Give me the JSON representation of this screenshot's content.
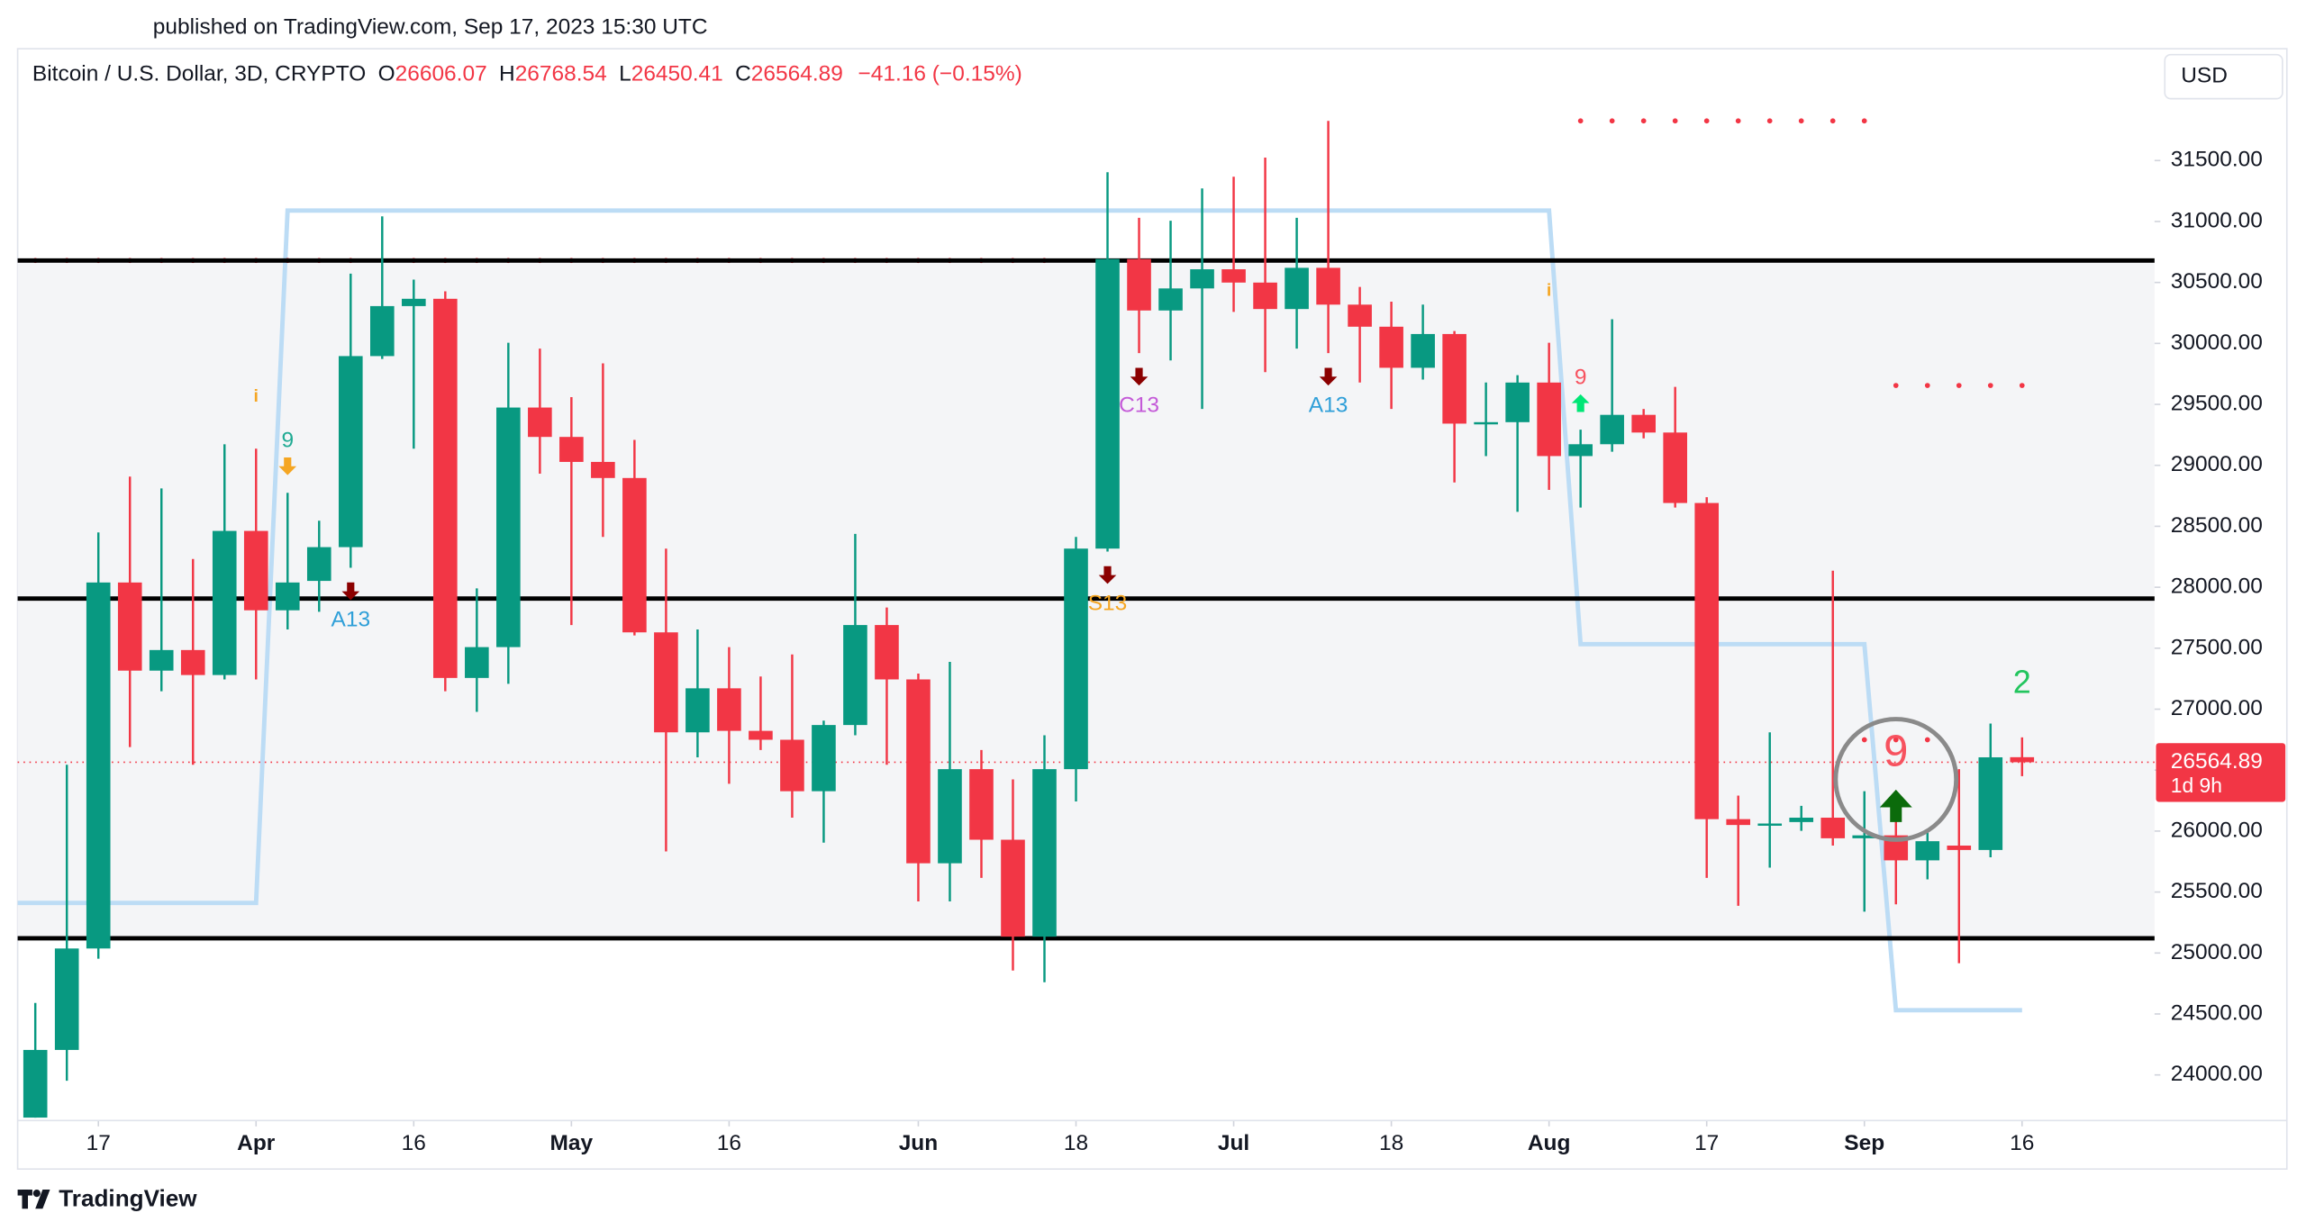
{
  "header": {
    "published": "published on TradingView.com, Sep 17, 2023 15:30 UTC",
    "symbol": "Bitcoin / U.S. Dollar, 3D, CRYPTO",
    "o_label": "O",
    "h_label": "H",
    "l_label": "L",
    "c_label": "C",
    "change": "−41.16 (−0.15%)",
    "currency": "USD"
  },
  "footer": {
    "brand": "TradingView"
  },
  "chart_data": {
    "type": "candlestick",
    "up_color": "#089981",
    "down_color": "#f23645",
    "open": [
      23650,
      24205,
      25037,
      28039,
      27316,
      27485,
      27280,
      28462,
      27811,
      28052,
      28329,
      29896,
      30306,
      30366,
      27256,
      27509,
      29474,
      29233,
      29028,
      28896,
      27630,
      26810,
      27171,
      26822,
      26749,
      26327,
      26870,
      27690,
      27244,
      25736,
      26508,
      25929,
      25134,
      26508,
      28317,
      30692,
      30270,
      30451,
      30608,
      30499,
      30282,
      30620,
      30318,
      30137,
      29800,
      30077,
      29342,
      29354,
      29679,
      29076,
      29173,
      29414,
      29269,
      28691,
      26098,
      26050,
      26074,
      26110,
      25941,
      25965,
      25760,
      25881,
      25845,
      26606.07
    ],
    "high": [
      24590,
      26544,
      28450,
      28908,
      28811,
      28232,
      29173,
      29137,
      28775,
      28546,
      30572,
      31042,
      30523,
      30427,
      27991,
      30005,
      29957,
      29559,
      29836,
      29209,
      28317,
      27654,
      27509,
      27268,
      27449,
      26906,
      28438,
      27834,
      27292,
      27388,
      26665,
      26424,
      26786,
      28413,
      31404,
      31030,
      31006,
      31271,
      31367,
      31524,
      31030,
      31825,
      30463,
      30342,
      30318,
      30101,
      29679,
      29739,
      30005,
      29293,
      30198,
      29462,
      29643,
      28739,
      26291,
      26810,
      26207,
      28136,
      26327,
      26183,
      26002,
      26508,
      26882,
      26768.54
    ],
    "low": [
      23650,
      23952,
      24953,
      26689,
      27147,
      26544,
      27244,
      27244,
      27654,
      27799,
      28160,
      29872,
      29137,
      27147,
      26978,
      27208,
      28932,
      27690,
      28413,
      27605,
      25833,
      26605,
      26388,
      26665,
      26110,
      25905,
      26786,
      26544,
      25423,
      25423,
      25616,
      24856,
      24760,
      26243,
      28293,
      29920,
      29860,
      29462,
      30258,
      29764,
      29957,
      29920,
      29679,
      29462,
      29703,
      28860,
      29076,
      28619,
      28799,
      28654,
      29112,
      29221,
      28654,
      25616,
      25387,
      25700,
      26002,
      25881,
      25339,
      25399,
      25604,
      24916,
      25785,
      26450.41
    ],
    "close": [
      24205,
      25037,
      28039,
      27316,
      27485,
      27280,
      28462,
      27811,
      28039,
      28329,
      29896,
      30306,
      30366,
      27256,
      27509,
      29474,
      29233,
      29028,
      28896,
      27630,
      26810,
      27171,
      26822,
      26749,
      26327,
      26870,
      27690,
      27244,
      25736,
      26508,
      25929,
      25134,
      26508,
      28317,
      30692,
      30270,
      30451,
      30608,
      30499,
      30282,
      30620,
      30318,
      30137,
      29800,
      30077,
      29342,
      29354,
      29679,
      29076,
      29173,
      29414,
      29269,
      28691,
      26098,
      26050,
      26062,
      26110,
      25941,
      25965,
      25760,
      25917,
      25845,
      26605,
      26564.89
    ],
    "xlim": [
      -0.56,
      67.2
    ],
    "ylim": [
      23626,
      32417
    ],
    "xticks": [
      {
        "value": 2,
        "label": "17"
      },
      {
        "value": 7,
        "label": "Apr"
      },
      {
        "value": 12,
        "label": "16"
      },
      {
        "value": 17,
        "label": "May"
      },
      {
        "value": 22,
        "label": "16"
      },
      {
        "value": 28,
        "label": "Jun"
      },
      {
        "value": 33,
        "label": "18"
      },
      {
        "value": 38,
        "label": "Jul"
      },
      {
        "value": 43,
        "label": "18"
      },
      {
        "value": 48,
        "label": "Aug"
      },
      {
        "value": 53,
        "label": "17"
      },
      {
        "value": 58,
        "label": "Sep"
      },
      {
        "value": 63,
        "label": "16"
      }
    ],
    "yticks": [
      {
        "value": 24000,
        "label": "24000.00"
      },
      {
        "value": 24500,
        "label": "24500.00"
      },
      {
        "value": 25000,
        "label": "25000.00"
      },
      {
        "value": 25500,
        "label": "25500.00"
      },
      {
        "value": 26000,
        "label": "26000.00"
      },
      {
        "value": 26500,
        "label": "26500.00"
      },
      {
        "value": 27000,
        "label": "27000.00"
      },
      {
        "value": 27500,
        "label": "27500.00"
      },
      {
        "value": 28000,
        "label": "28000.00"
      },
      {
        "value": 28500,
        "label": "28500.00"
      },
      {
        "value": 29000,
        "label": "29000.00"
      },
      {
        "value": 29500,
        "label": "29500.00"
      },
      {
        "value": 30000,
        "label": "30000.00"
      },
      {
        "value": 30500,
        "label": "30500.00"
      },
      {
        "value": 31000,
        "label": "31000.00"
      },
      {
        "value": 31500,
        "label": "31500.00"
      }
    ],
    "levels": [
      30680,
      27907,
      25121
    ],
    "band_color": "#f4f5f7",
    "stepline": {
      "color": "#bcdcf5",
      "x": [
        -0.56,
        7,
        8,
        48,
        49,
        58,
        59,
        63
      ],
      "values": [
        25411,
        25411,
        31090,
        31090,
        27533,
        27533,
        24531,
        24531
      ]
    },
    "dotted_levels": [
      {
        "value": 30680,
        "from": 0,
        "to": 32,
        "color": "#f23645"
      },
      {
        "value": 31825,
        "from": 49,
        "to": 58,
        "color": "#f23645"
      },
      {
        "value": 29655,
        "from": 59,
        "to": 63,
        "color": "#f23645"
      },
      {
        "value": 26749,
        "from": 58,
        "to": 60.5,
        "color": "#f23645"
      }
    ],
    "annotations": [
      {
        "text": "i",
        "x": 7,
        "place": "above",
        "color": "#f5a623"
      },
      {
        "text": "9",
        "x": 8,
        "place": "above",
        "color": "#22ab94",
        "arrow": {
          "dir": "down",
          "color": "#f5a623"
        }
      },
      {
        "text": "A13",
        "x": 10,
        "place": "below",
        "color": "#2f9fd8",
        "arrow": {
          "dir": "down",
          "color": "#8b0000"
        }
      },
      {
        "text": "S13",
        "x": 34,
        "place": "below",
        "color": "#f5a623",
        "arrow": {
          "dir": "down",
          "color": "#8b0000"
        }
      },
      {
        "text": "C13",
        "x": 35,
        "place": "below",
        "color": "#c45ad8",
        "arrow": {
          "dir": "down",
          "color": "#8b0000"
        }
      },
      {
        "text": "A13",
        "x": 41,
        "place": "below",
        "color": "#2f9fd8",
        "arrow": {
          "dir": "down",
          "color": "#8b0000"
        }
      },
      {
        "text": "i",
        "x": 48,
        "place": "above",
        "color": "#f5a623"
      },
      {
        "text": "9",
        "x": 49,
        "place": "above",
        "color": "#f7525f",
        "arrow": {
          "dir": "up",
          "color": "#00e676"
        }
      },
      {
        "text": "2",
        "x": 63,
        "place": "above",
        "color": "#22c55e"
      }
    ],
    "highlight": {
      "text": "9",
      "x": 59,
      "color": "#f7525f",
      "arrow_color": "#0b6b0b",
      "ring_color": "#8a8a8a"
    },
    "price_line_color": "#f23645",
    "countdown": "1d 9h"
  }
}
